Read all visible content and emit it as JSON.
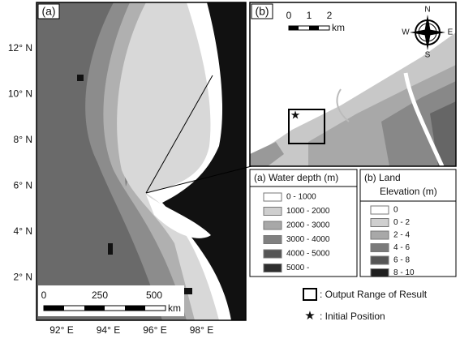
{
  "panel_a": {
    "label": "(a)",
    "lat_labels": [
      "12° N",
      "10° N",
      "8° N",
      "6° N",
      "4° N",
      "2° N"
    ],
    "lon_labels": [
      "92° E",
      "94° E",
      "96° E",
      "98° E"
    ],
    "scale_bar": {
      "labels": [
        "0",
        "250",
        "500"
      ],
      "unit": "km"
    }
  },
  "panel_b": {
    "label": "(b)",
    "scale_bar": {
      "labels": [
        "0",
        "1",
        "2"
      ],
      "unit": "km"
    },
    "compass": {
      "n": "N",
      "s": "S",
      "e": "E",
      "w": "W"
    }
  },
  "legend_water": {
    "title": "(a) Water depth (m)",
    "items": [
      "0 - 1000",
      "1000 - 2000",
      "2000 - 3000",
      "3000 - 4000",
      "4000 - 5000",
      "5000 -"
    ]
  },
  "legend_land": {
    "title_lines": [
      "(b) Land",
      "Elevation (m)"
    ],
    "items": [
      "0",
      "0 - 2",
      "2 - 4",
      "4 - 6",
      "6 - 8",
      "8 - 10"
    ]
  },
  "notes": {
    "output_range": ": Output Range of Result",
    "initial_position": ": Initial Position"
  }
}
